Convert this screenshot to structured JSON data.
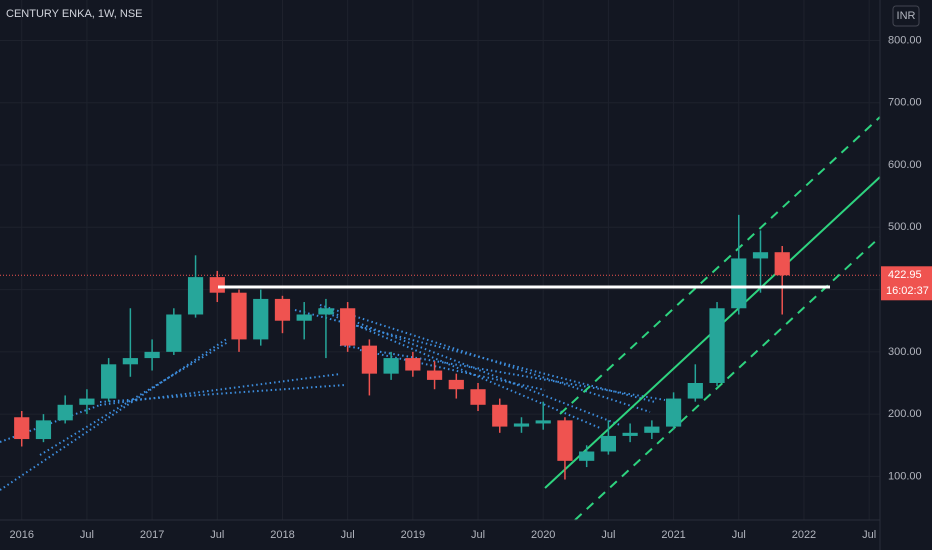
{
  "chart_data": {
    "type": "candlestick",
    "title": "CENTURY ENKA, 1W, NSE",
    "currency": "INR",
    "x": [
      "2016-01",
      "2016-03",
      "2016-05",
      "2016-07",
      "2016-09",
      "2016-11",
      "2017-01",
      "2017-03",
      "2017-05",
      "2017-07",
      "2017-09",
      "2017-11",
      "2018-01",
      "2018-03",
      "2018-05",
      "2018-07",
      "2018-09",
      "2018-11",
      "2019-01",
      "2019-03",
      "2019-05",
      "2019-07",
      "2019-09",
      "2019-11",
      "2020-01",
      "2020-03",
      "2020-05",
      "2020-07",
      "2020-09",
      "2020-11",
      "2021-01",
      "2021-03",
      "2021-05",
      "2021-07",
      "2021-09",
      "2021-11"
    ],
    "open": [
      195,
      160,
      190,
      215,
      225,
      280,
      290,
      300,
      360,
      420,
      395,
      320,
      385,
      350,
      360,
      370,
      310,
      265,
      290,
      270,
      255,
      240,
      215,
      180,
      185,
      190,
      125,
      140,
      165,
      170,
      180,
      225,
      250,
      370,
      450,
      460
    ],
    "high": [
      205,
      200,
      230,
      240,
      290,
      370,
      320,
      370,
      455,
      430,
      400,
      400,
      390,
      380,
      385,
      380,
      320,
      300,
      300,
      285,
      265,
      250,
      225,
      195,
      220,
      195,
      150,
      190,
      185,
      190,
      235,
      280,
      380,
      520,
      495,
      470
    ],
    "low": [
      148,
      155,
      185,
      200,
      220,
      260,
      270,
      295,
      355,
      380,
      300,
      310,
      330,
      320,
      290,
      300,
      230,
      255,
      260,
      240,
      225,
      205,
      170,
      170,
      175,
      95,
      115,
      135,
      155,
      160,
      175,
      220,
      245,
      360,
      395,
      360
    ],
    "close": [
      160,
      190,
      215,
      225,
      280,
      290,
      300,
      360,
      420,
      395,
      320,
      385,
      350,
      360,
      370,
      310,
      265,
      290,
      270,
      255,
      240,
      215,
      180,
      185,
      190,
      125,
      140,
      165,
      170,
      180,
      225,
      250,
      370,
      450,
      460,
      422.95
    ],
    "up_color": "#26a69a",
    "down_color": "#ef5350",
    "last_price": 422.95,
    "countdown": "16:02:37",
    "xlim": [
      "2015-11",
      "2022-08"
    ],
    "xticks": [
      {
        "value": "2016-01",
        "label": "2016"
      },
      {
        "value": "2016-07",
        "label": "Jul"
      },
      {
        "value": "2017-01",
        "label": "2017"
      },
      {
        "value": "2017-07",
        "label": "Jul"
      },
      {
        "value": "2018-01",
        "label": "2018"
      },
      {
        "value": "2018-07",
        "label": "Jul"
      },
      {
        "value": "2019-01",
        "label": "2019"
      },
      {
        "value": "2019-07",
        "label": "Jul"
      },
      {
        "value": "2020-01",
        "label": "2020"
      },
      {
        "value": "2020-07",
        "label": "Jul"
      },
      {
        "value": "2021-01",
        "label": "2021"
      },
      {
        "value": "2021-07",
        "label": "Jul"
      },
      {
        "value": "2022-01",
        "label": "2022"
      },
      {
        "value": "2022-07",
        "label": "Jul"
      }
    ],
    "ylim": [
      30,
      865
    ],
    "yticks": [
      {
        "value": 100,
        "label": "100.00"
      },
      {
        "value": 200,
        "label": "200.00"
      },
      {
        "value": 300,
        "label": "300.00"
      },
      {
        "value": 400,
        "label": "400.00"
      },
      {
        "value": 500,
        "label": "500.00"
      },
      {
        "value": 600,
        "label": "600.00"
      },
      {
        "value": 700,
        "label": "700.00"
      },
      {
        "value": 800,
        "label": "800.00"
      }
    ],
    "grid": true
  }
}
